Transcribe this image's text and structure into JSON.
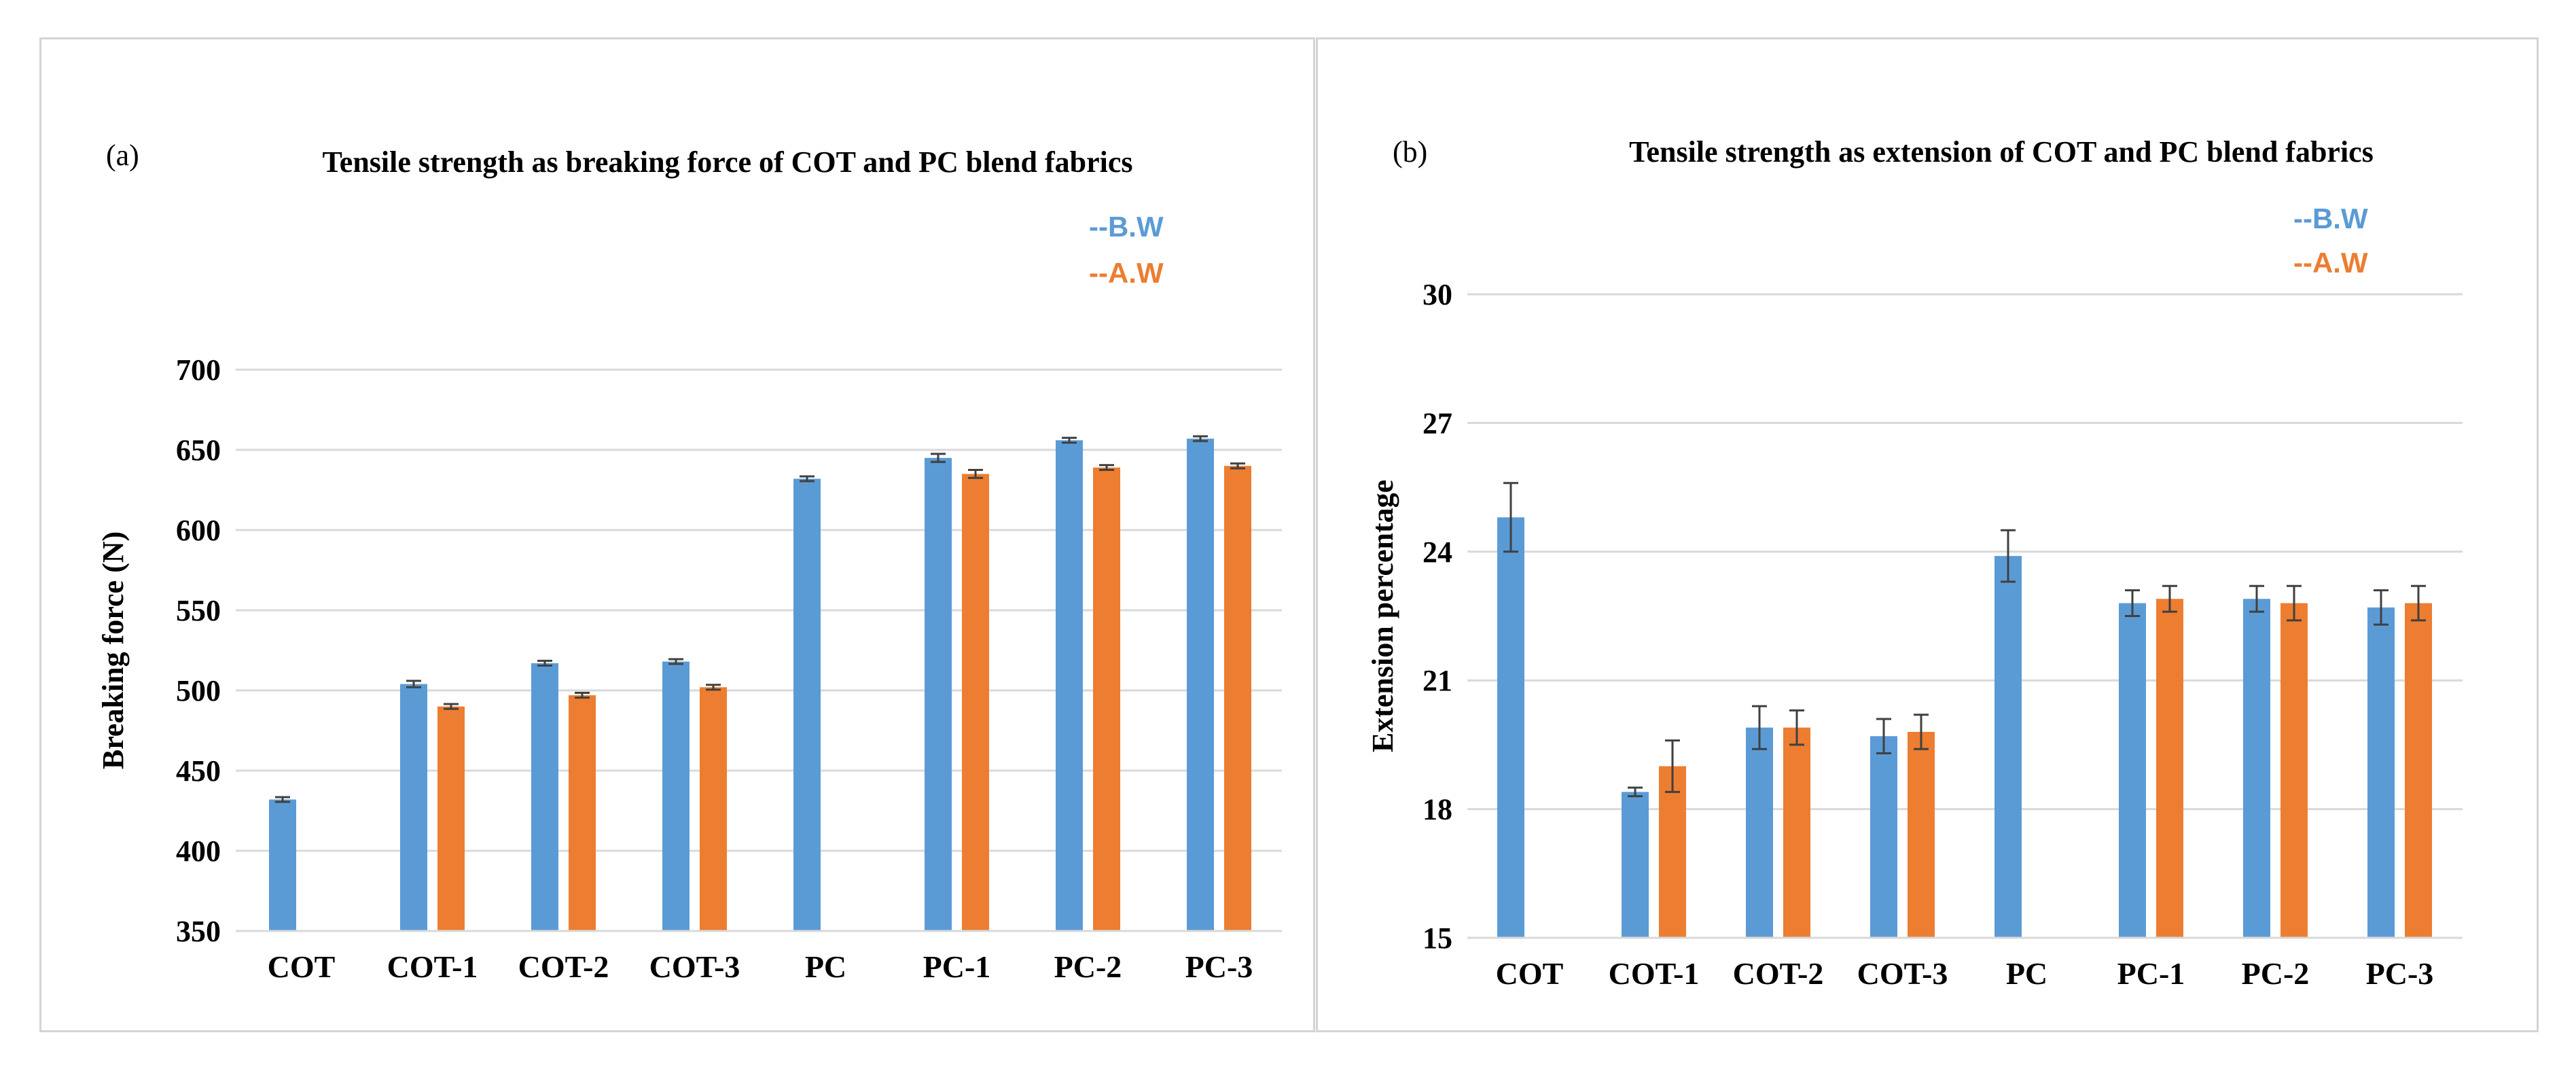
{
  "chart_data": [
    {
      "type": "bar",
      "panel_label": "(a)",
      "title": "Tensile strength as breaking force of COT and PC blend fabrics",
      "xlabel": "",
      "ylabel": "Breaking force (N)",
      "ylim": [
        350,
        700
      ],
      "yticks": [
        "350",
        "400",
        "450",
        "500",
        "550",
        "600",
        "650",
        "700"
      ],
      "ytick_values": [
        350,
        400,
        450,
        500,
        550,
        600,
        650,
        700
      ],
      "grid": true,
      "legend_position": "top-right",
      "categories": [
        "COT",
        "COT-1",
        "COT-2",
        "COT-3",
        "PC",
        "PC-1",
        "PC-2",
        "PC-3"
      ],
      "series": [
        {
          "name": "--B.W",
          "color": "#5b9bd5",
          "values": [
            432,
            504,
            517,
            518,
            632,
            645,
            656,
            657
          ],
          "errors": [
            1.5,
            2,
            1.5,
            1.5,
            1.5,
            2.5,
            1.5,
            1.5
          ]
        },
        {
          "name": "--A.W",
          "color": "#ed7d31",
          "values": [
            null,
            490,
            497,
            502,
            null,
            635,
            639,
            640
          ],
          "errors": [
            null,
            1.5,
            1.5,
            1.5,
            null,
            2.5,
            1.5,
            1.5
          ]
        }
      ]
    },
    {
      "type": "bar",
      "panel_label": "(b)",
      "title": "Tensile strength as extension of COT and PC blend fabrics",
      "xlabel": "",
      "ylabel": "Extension percentage",
      "ylim": [
        15,
        30
      ],
      "yticks": [
        "15",
        "18",
        "21",
        "24",
        "27",
        "30"
      ],
      "ytick_values": [
        15,
        18,
        21,
        24,
        27,
        30
      ],
      "grid": true,
      "legend_position": "top-right",
      "categories": [
        "COT",
        "COT-1",
        "COT-2",
        "COT-3",
        "PC",
        "PC-1",
        "PC-2",
        "PC-3"
      ],
      "series": [
        {
          "name": "--B.W",
          "color": "#5b9bd5",
          "values": [
            24.8,
            18.4,
            19.9,
            19.7,
            23.9,
            22.8,
            22.9,
            22.7
          ],
          "errors": [
            0.8,
            0.1,
            0.5,
            0.4,
            0.6,
            0.3,
            0.3,
            0.4
          ]
        },
        {
          "name": "--A.W",
          "color": "#ed7d31",
          "values": [
            null,
            19.0,
            19.9,
            19.8,
            null,
            22.9,
            22.8,
            22.8
          ],
          "errors": [
            null,
            0.6,
            0.4,
            0.4,
            null,
            0.3,
            0.4,
            0.4
          ]
        }
      ]
    }
  ]
}
